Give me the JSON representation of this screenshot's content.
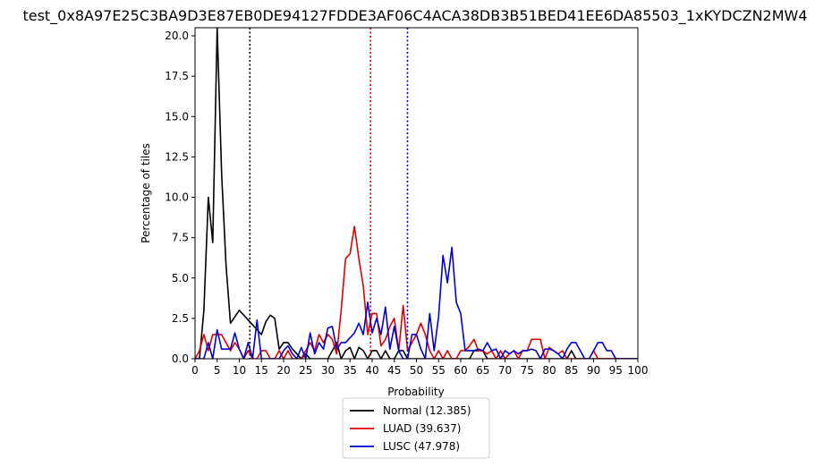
{
  "chart_data": {
    "type": "line",
    "title": "test_0x8A97E25C3BA9D3E87EB0DE94127FDDE3AF06C4ACA38DB3B51BED41EE6DA85503_1xKYDCZN2MW4",
    "xlabel": "Probability",
    "ylabel": "Percentage of tiles",
    "xlim": [
      0,
      100
    ],
    "ylim": [
      0,
      20.5
    ],
    "xticks": [
      0,
      5,
      10,
      15,
      20,
      25,
      30,
      35,
      40,
      45,
      50,
      55,
      60,
      65,
      70,
      75,
      80,
      85,
      90,
      95,
      100
    ],
    "yticks": [
      0.0,
      2.5,
      5.0,
      7.5,
      10.0,
      12.5,
      15.0,
      17.5,
      20.0
    ],
    "ytick_labels": [
      "0.0",
      "2.5",
      "5.0",
      "7.5",
      "10.0",
      "12.5",
      "15.0",
      "17.5",
      "20.0"
    ],
    "grid": false,
    "legend_position": "below",
    "series": [
      {
        "name": "Normal (12.385)",
        "color": "#000000",
        "mean": 12.385,
        "x": [
          0,
          1,
          2,
          3,
          4,
          5,
          6,
          7,
          8,
          9,
          10,
          11,
          12,
          13,
          14,
          15,
          16,
          17,
          18,
          19,
          20,
          21,
          22,
          23,
          24,
          25,
          26,
          27,
          28,
          29,
          30,
          31,
          32,
          33,
          34,
          35,
          36,
          37,
          38,
          39,
          40,
          41,
          42,
          43,
          44,
          45,
          46,
          47,
          48,
          49,
          50,
          51,
          52,
          53,
          54,
          55,
          56,
          57,
          58,
          59,
          60,
          61,
          62,
          63,
          64,
          65,
          66,
          67,
          68,
          69,
          70,
          71,
          72,
          73,
          74,
          75,
          76,
          77,
          78,
          79,
          80,
          81,
          82,
          83,
          84,
          85,
          86,
          87,
          88,
          89,
          90,
          91,
          92,
          93,
          94,
          95,
          96,
          97,
          98,
          99,
          100
        ],
        "y": [
          0,
          0,
          3.0,
          10.0,
          7.2,
          20.5,
          11.5,
          5.8,
          2.2,
          2.6,
          3.0,
          2.7,
          2.4,
          2.1,
          1.8,
          1.5,
          2.3,
          2.7,
          2.5,
          0.6,
          1.0,
          1.0,
          0.6,
          0.3,
          0,
          0.3,
          0,
          0,
          0,
          0,
          0,
          0.5,
          1.0,
          0,
          0.5,
          0.7,
          0,
          0.7,
          0.5,
          0,
          0.5,
          0.5,
          0,
          0.5,
          0,
          0,
          0.5,
          0.5,
          0,
          0,
          0,
          0,
          0,
          0,
          0,
          0,
          0,
          0,
          0,
          0,
          0,
          0,
          0,
          0.5,
          0.5,
          0.5,
          0,
          0,
          0,
          0,
          0,
          0,
          0,
          0,
          0,
          0,
          0,
          0,
          0,
          0,
          0,
          0,
          0,
          0,
          0,
          0.5,
          0,
          0,
          0,
          0,
          0,
          0,
          0,
          0,
          0,
          0,
          0,
          0,
          0,
          0,
          0
        ]
      },
      {
        "name": "LUAD (39.637)",
        "color": "#e00000",
        "mean": 39.637,
        "x": [
          0,
          1,
          2,
          3,
          4,
          5,
          6,
          7,
          8,
          9,
          10,
          11,
          12,
          13,
          14,
          15,
          16,
          17,
          18,
          19,
          20,
          21,
          22,
          23,
          24,
          25,
          26,
          27,
          28,
          29,
          30,
          31,
          32,
          33,
          34,
          35,
          36,
          37,
          38,
          39,
          40,
          41,
          42,
          43,
          44,
          45,
          46,
          47,
          48,
          49,
          50,
          51,
          52,
          53,
          54,
          55,
          56,
          57,
          58,
          59,
          60,
          61,
          62,
          63,
          64,
          65,
          66,
          67,
          68,
          69,
          70,
          71,
          72,
          73,
          74,
          75,
          76,
          77,
          78,
          79,
          80,
          81,
          82,
          83,
          84,
          85,
          86,
          87,
          88,
          89,
          90,
          91,
          92,
          93,
          94,
          95,
          96,
          97,
          98,
          99,
          100
        ],
        "y": [
          0,
          0.5,
          1.5,
          0.5,
          1.5,
          1.5,
          1.5,
          1.0,
          0.5,
          1.0,
          0.6,
          0,
          0.5,
          0,
          0,
          0.5,
          0.5,
          0,
          0,
          0.5,
          0,
          0.5,
          0,
          0,
          0,
          0.5,
          1.0,
          0.5,
          1.5,
          1.0,
          1.5,
          1.2,
          0.3,
          3.0,
          6.2,
          6.5,
          8.2,
          6.2,
          4.5,
          1.5,
          2.8,
          2.8,
          0.8,
          1.2,
          2.0,
          2.5,
          0.5,
          3.3,
          0.5,
          1.0,
          1.5,
          2.2,
          1.5,
          0.5,
          0,
          0.5,
          0,
          0.5,
          0,
          0,
          0.5,
          0.5,
          0.8,
          1.2,
          0.5,
          0.5,
          0.3,
          0.5,
          0,
          0.5,
          0,
          0.3,
          0.5,
          0,
          0.5,
          0.5,
          1.2,
          1.2,
          1.2,
          0,
          0.7,
          0.5,
          0.3,
          0.5,
          0,
          0,
          0,
          0,
          0,
          0,
          0.5,
          0,
          0,
          0,
          0,
          0,
          0,
          0,
          0,
          0,
          0
        ]
      },
      {
        "name": "LUSC (47.978)",
        "color": "#0000d0",
        "mean": 47.978,
        "x": [
          0,
          1,
          2,
          3,
          4,
          5,
          6,
          7,
          8,
          9,
          10,
          11,
          12,
          13,
          14,
          15,
          16,
          17,
          18,
          19,
          20,
          21,
          22,
          23,
          24,
          25,
          26,
          27,
          28,
          29,
          30,
          31,
          32,
          33,
          34,
          35,
          36,
          37,
          38,
          39,
          40,
          41,
          42,
          43,
          44,
          45,
          46,
          47,
          48,
          49,
          50,
          51,
          52,
          53,
          54,
          55,
          56,
          57,
          58,
          59,
          60,
          61,
          62,
          63,
          64,
          65,
          66,
          67,
          68,
          69,
          70,
          71,
          72,
          73,
          74,
          75,
          76,
          77,
          78,
          79,
          80,
          81,
          82,
          83,
          84,
          85,
          86,
          87,
          88,
          89,
          90,
          91,
          92,
          93,
          94,
          95,
          96,
          97,
          98,
          99,
          100
        ],
        "y": [
          0,
          0,
          0,
          1.0,
          0,
          1.8,
          0.6,
          0.6,
          0.6,
          1.6,
          0.6,
          0,
          1.0,
          0,
          2.4,
          0,
          0,
          0,
          0,
          0,
          0.5,
          0.8,
          0.3,
          0,
          0.7,
          0,
          1.6,
          0.3,
          1.0,
          0.6,
          1.9,
          2.0,
          0.6,
          1.0,
          1.0,
          1.3,
          1.6,
          2.2,
          1.5,
          3.5,
          1.6,
          2.5,
          1.5,
          3.2,
          0.6,
          2.0,
          0.5,
          0,
          0,
          1.5,
          1.5,
          0.6,
          0,
          2.8,
          0.5,
          2.6,
          6.4,
          4.7,
          6.9,
          3.5,
          2.8,
          0.5,
          0.5,
          0.5,
          0.6,
          0.5,
          1.0,
          0.5,
          0.6,
          0,
          0.5,
          0.3,
          0.5,
          0.3,
          0.5,
          0.5,
          0.6,
          0.5,
          0,
          0.6,
          0.6,
          0.5,
          0.3,
          0,
          0.6,
          1.0,
          1.0,
          0.5,
          0,
          0,
          0.5,
          1.0,
          1.0,
          0.5,
          0.5,
          0,
          0,
          0,
          0,
          0,
          0
        ]
      }
    ],
    "vlines": [
      {
        "x": 12.385,
        "color": "#000000"
      },
      {
        "x": 39.637,
        "color": "#e00000"
      },
      {
        "x": 47.978,
        "color": "#0000d0"
      }
    ]
  }
}
